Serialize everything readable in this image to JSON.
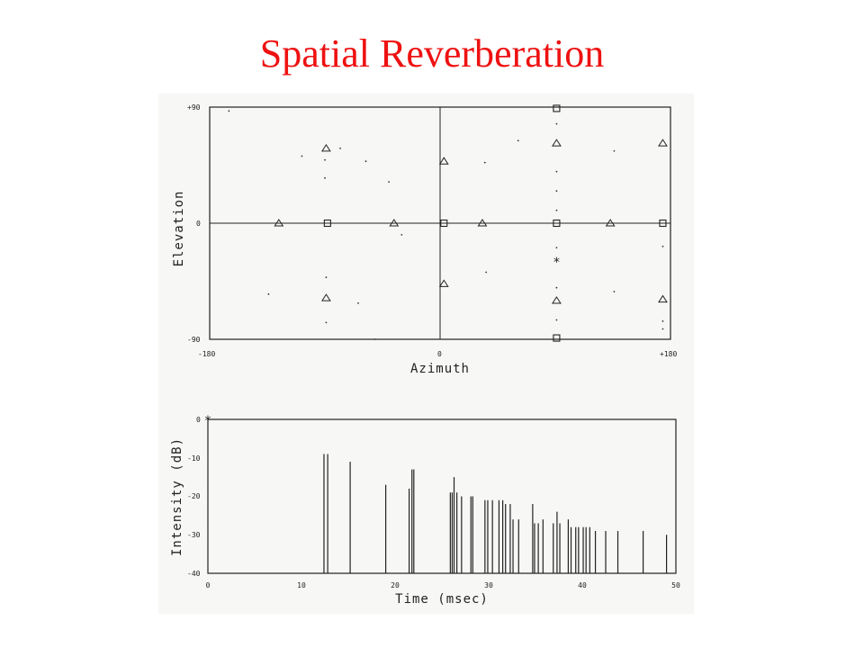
{
  "title": "Spatial Reverberation",
  "chart_data": [
    {
      "type": "scatter",
      "xlabel": "Azimuth",
      "ylabel": "Elevation",
      "xlim": [
        -180,
        180
      ],
      "ylim": [
        -90,
        90
      ],
      "x_ticks": [
        "-180",
        "0",
        "+180"
      ],
      "y_ticks": [
        "+90",
        "0",
        "-90"
      ],
      "grid": false,
      "series": [
        {
          "marker": "triangle",
          "points": [
            [
              -126,
              0
            ],
            [
              -89,
              58
            ],
            [
              -89,
              -58
            ],
            [
              -36,
              0
            ],
            [
              3,
              48
            ],
            [
              3,
              -47
            ],
            [
              33,
              0
            ],
            [
              91,
              62
            ],
            [
              91,
              -60
            ],
            [
              133,
              0
            ],
            [
              174,
              62
            ],
            [
              174,
              -59
            ]
          ]
        },
        {
          "marker": "square",
          "points": [
            [
              -88,
              0
            ],
            [
              3,
              0
            ],
            [
              91,
              0
            ],
            [
              91,
              89
            ],
            [
              91,
              -89
            ],
            [
              174,
              0
            ]
          ]
        },
        {
          "marker": "star",
          "points": [
            [
              91,
              -30
            ]
          ]
        },
        {
          "marker": "dot",
          "points": [
            [
              -165,
              87
            ],
            [
              -108,
              52
            ],
            [
              -90,
              49
            ],
            [
              -90,
              35
            ],
            [
              -78,
              58
            ],
            [
              -58,
              48
            ],
            [
              -40,
              32
            ],
            [
              -30,
              -9
            ],
            [
              -134,
              -55
            ],
            [
              -89,
              -42
            ],
            [
              -89,
              -77
            ],
            [
              -64,
              -62
            ],
            [
              -51,
              -90
            ],
            [
              35,
              47
            ],
            [
              36,
              -38
            ],
            [
              61,
              64
            ],
            [
              91,
              77
            ],
            [
              91,
              40
            ],
            [
              91,
              25
            ],
            [
              91,
              10
            ],
            [
              91,
              -19
            ],
            [
              91,
              -50
            ],
            [
              91,
              -75
            ],
            [
              136,
              56
            ],
            [
              136,
              -53
            ],
            [
              174,
              -18
            ],
            [
              174,
              -76
            ],
            [
              174,
              -82
            ]
          ]
        }
      ]
    },
    {
      "type": "bar",
      "xlabel": "Time (msec)",
      "ylabel": "Intensity (dB)",
      "xlim": [
        0,
        50
      ],
      "ylim": [
        -40,
        0
      ],
      "x_ticks": [
        "0",
        "10",
        "20",
        "30",
        "40",
        "50"
      ],
      "y_ticks": [
        "0",
        "-10",
        "-20",
        "-30",
        "-40"
      ],
      "grid": false,
      "direct_sound": {
        "time": 0,
        "intensity": 0,
        "marker": "star"
      },
      "series": [
        {
          "times": [
            12.4,
            12.8,
            15.2,
            19.0,
            21.5,
            21.8,
            22.0,
            25.9,
            26.1,
            26.3,
            26.6,
            27.1,
            28.1,
            28.3,
            29.6,
            29.9,
            30.4,
            31.1,
            31.5,
            31.8,
            32.3,
            32.6,
            33.2,
            34.7,
            34.9,
            35.3,
            35.8,
            36.9,
            37.3,
            37.6,
            38.5,
            38.8,
            39.3,
            39.6,
            40.1,
            40.4,
            40.8,
            41.4,
            42.5,
            43.8,
            46.5,
            49.0
          ],
          "values": [
            -9,
            -9,
            -11,
            -17,
            -18,
            -13,
            -13,
            -19,
            -19,
            -15,
            -19,
            -20,
            -20,
            -20,
            -21,
            -21,
            -21,
            -21,
            -21,
            -22,
            -22,
            -26,
            -26,
            -22,
            -27,
            -27,
            -26,
            -27,
            -24,
            -27,
            -26,
            -28,
            -28,
            -28,
            -28,
            -28,
            -28,
            -29,
            -29,
            -29,
            -29,
            -30
          ]
        }
      ]
    }
  ]
}
